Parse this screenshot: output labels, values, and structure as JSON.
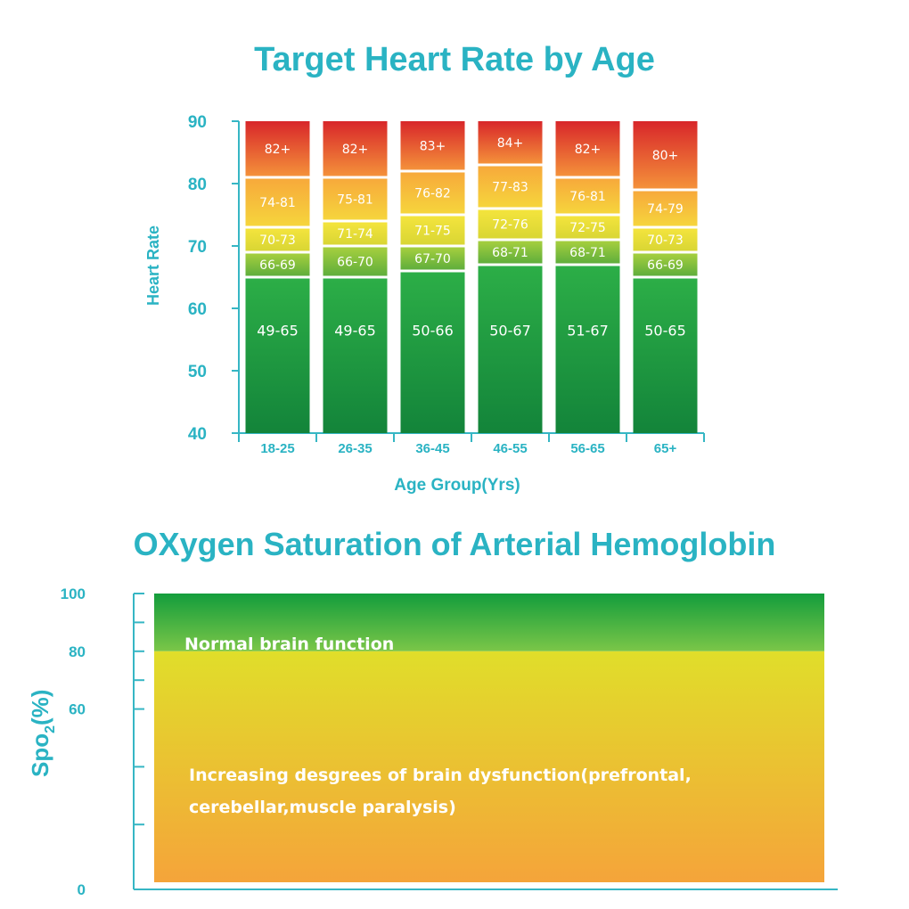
{
  "chart_data": [
    {
      "type": "bar",
      "stacked": true,
      "title": "Target Heart Rate by Age",
      "xlabel": "Age Group(Yrs)",
      "ylabel": "Heart Rate",
      "ylim": [
        40,
        90
      ],
      "yticks": [
        40,
        50,
        60,
        70,
        80,
        90
      ],
      "categories": [
        "18-25",
        "26-35",
        "36-45",
        "46-55",
        "56-65",
        "65+"
      ],
      "zone_colors": [
        "#1f9a3a",
        "#8cc63f",
        "#f2e33a",
        "#f6b53a",
        "#e0432a"
      ],
      "series": [
        {
          "name": "zone1",
          "ranges": [
            [
              40,
              65
            ],
            [
              40,
              65
            ],
            [
              40,
              66
            ],
            [
              40,
              67
            ],
            [
              40,
              67
            ],
            [
              40,
              65
            ]
          ],
          "labels": [
            "49-65",
            "49-65",
            "50-66",
            "50-67",
            "51-67",
            "50-65"
          ]
        },
        {
          "name": "zone2",
          "ranges": [
            [
              65,
              69
            ],
            [
              65,
              70
            ],
            [
              66,
              70
            ],
            [
              67,
              71
            ],
            [
              67,
              71
            ],
            [
              65,
              69
            ]
          ],
          "labels": [
            "66-69",
            "66-70",
            "67-70",
            "68-71",
            "68-71",
            "66-69"
          ]
        },
        {
          "name": "zone3",
          "ranges": [
            [
              69,
              73
            ],
            [
              70,
              74
            ],
            [
              70,
              75
            ],
            [
              71,
              76
            ],
            [
              71,
              75
            ],
            [
              69,
              73
            ]
          ],
          "labels": [
            "70-73",
            "71-74",
            "71-75",
            "72-76",
            "72-75",
            "70-73"
          ]
        },
        {
          "name": "zone4",
          "ranges": [
            [
              73,
              81
            ],
            [
              74,
              81
            ],
            [
              75,
              82
            ],
            [
              76,
              83
            ],
            [
              75,
              81
            ],
            [
              73,
              79
            ]
          ],
          "labels": [
            "74-81",
            "75-81",
            "76-82",
            "77-83",
            "76-81",
            "74-79"
          ]
        },
        {
          "name": "zone5",
          "ranges": [
            [
              81,
              90
            ],
            [
              81,
              90
            ],
            [
              82,
              90
            ],
            [
              83,
              90
            ],
            [
              81,
              90
            ],
            [
              79,
              90
            ]
          ],
          "labels": [
            "82+",
            "82+",
            "83+",
            "84+",
            "82+",
            "80+"
          ]
        }
      ]
    },
    {
      "type": "area",
      "title": "OXygen Saturation of Arterial Hemoglobin",
      "ylabel": "Spo2(%)",
      "ylabel_main": "Spo",
      "ylabel_sub": "2",
      "ylabel_suffix": "(%)",
      "ylim": [
        0,
        100
      ],
      "yticks": [
        0,
        60,
        80,
        100
      ],
      "ytick_labels": [
        "0",
        "60",
        "80",
        "100"
      ],
      "minor_ticks": [
        20,
        40,
        70,
        90
      ],
      "zones": [
        {
          "name": "normal",
          "from": 80,
          "to": 100,
          "label": "Normal brain function",
          "colors": [
            "#139d3c",
            "#7bc648"
          ]
        },
        {
          "name": "dysfunction",
          "from": 0,
          "to": 80,
          "label_lines": [
            "Increasing desgrees of brain dysfunction(prefrontal,",
            "cerebellar,muscle paralysis)"
          ],
          "colors": [
            "#e0de2a",
            "#f5a43a"
          ]
        }
      ]
    }
  ]
}
